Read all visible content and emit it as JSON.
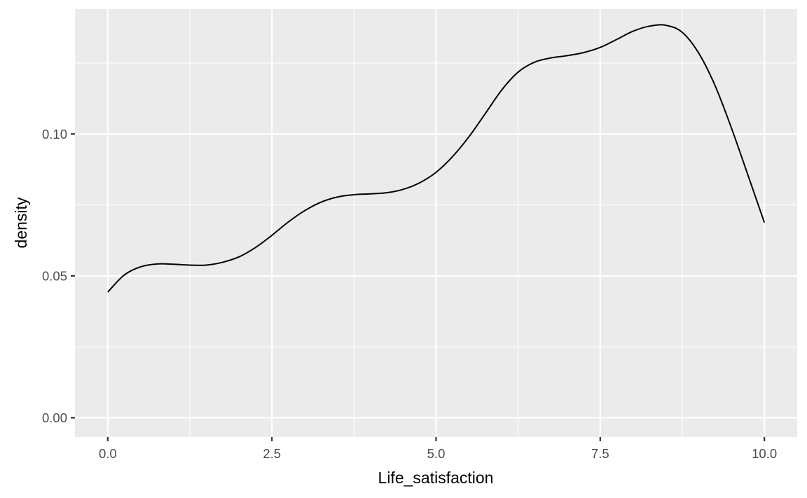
{
  "chart_data": {
    "type": "line",
    "geom": "density",
    "xlabel": "Life_satisfaction",
    "ylabel": "density",
    "xlim": [
      -0.5,
      10.5
    ],
    "ylim": [
      -0.0068,
      0.144
    ],
    "x_ticks": [
      0.0,
      2.5,
      5.0,
      7.5,
      10.0
    ],
    "x_tick_labels": [
      "0.0",
      "2.5",
      "5.0",
      "7.5",
      "10.0"
    ],
    "y_ticks": [
      0.0,
      0.05,
      0.1
    ],
    "y_tick_labels": [
      "0.00",
      "0.05",
      "0.10"
    ],
    "grid": true,
    "series": [
      {
        "x": [
          0.0,
          0.25,
          0.5,
          0.75,
          1.0,
          1.25,
          1.5,
          1.75,
          2.0,
          2.25,
          2.5,
          2.75,
          3.0,
          3.25,
          3.5,
          3.75,
          4.0,
          4.25,
          4.5,
          4.75,
          5.0,
          5.25,
          5.5,
          5.75,
          6.0,
          6.25,
          6.5,
          6.75,
          7.0,
          7.25,
          7.5,
          7.75,
          8.0,
          8.25,
          8.5,
          8.75,
          9.0,
          9.25,
          9.5,
          9.75,
          10.0
        ],
        "y": [
          0.0443,
          0.0503,
          0.0532,
          0.0542,
          0.0541,
          0.0538,
          0.0538,
          0.0548,
          0.0567,
          0.06,
          0.0643,
          0.069,
          0.073,
          0.076,
          0.0778,
          0.0786,
          0.0789,
          0.0793,
          0.0805,
          0.0828,
          0.0865,
          0.092,
          0.099,
          0.1072,
          0.1155,
          0.1218,
          0.1253,
          0.1268,
          0.1276,
          0.1287,
          0.1305,
          0.1333,
          0.1362,
          0.138,
          0.1383,
          0.1358,
          0.1285,
          0.117,
          0.102,
          0.0855,
          0.0688
        ]
      }
    ]
  }
}
